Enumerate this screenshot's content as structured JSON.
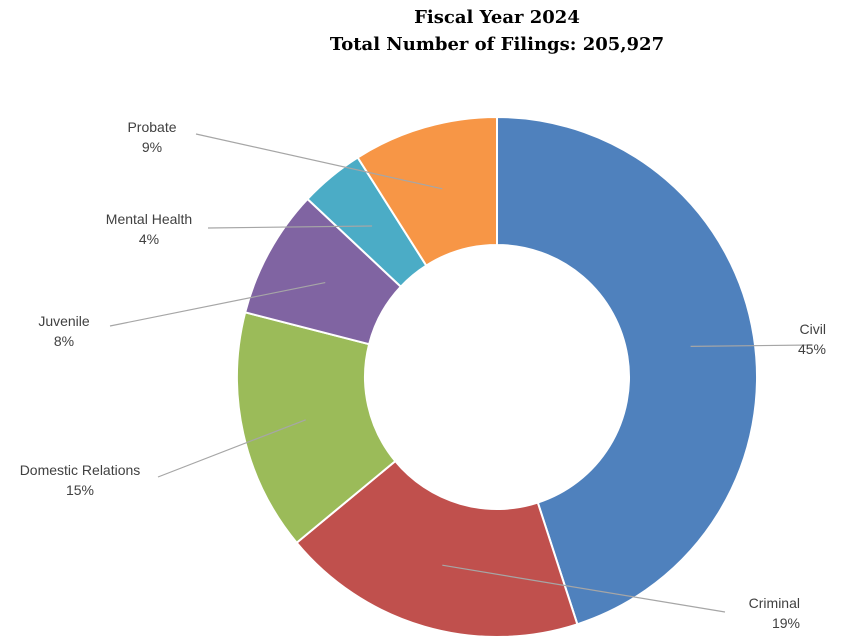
{
  "chart_data": {
    "type": "pie",
    "title": "Fiscal Year 2024",
    "subtitle": "Total Number of Filings: 205,927",
    "categories": [
      "Civil",
      "Criminal",
      "Domestic Relations",
      "Juvenile",
      "Mental Health",
      "Probate"
    ],
    "values": [
      45,
      19,
      15,
      8,
      4,
      9
    ],
    "value_labels": [
      "45%",
      "19%",
      "15%",
      "8%",
      "4%",
      "9%"
    ],
    "colors": [
      "#4f81bd",
      "#c0504d",
      "#9bbb59",
      "#8064a2",
      "#4bacc6",
      "#f79646"
    ],
    "donut": true
  }
}
